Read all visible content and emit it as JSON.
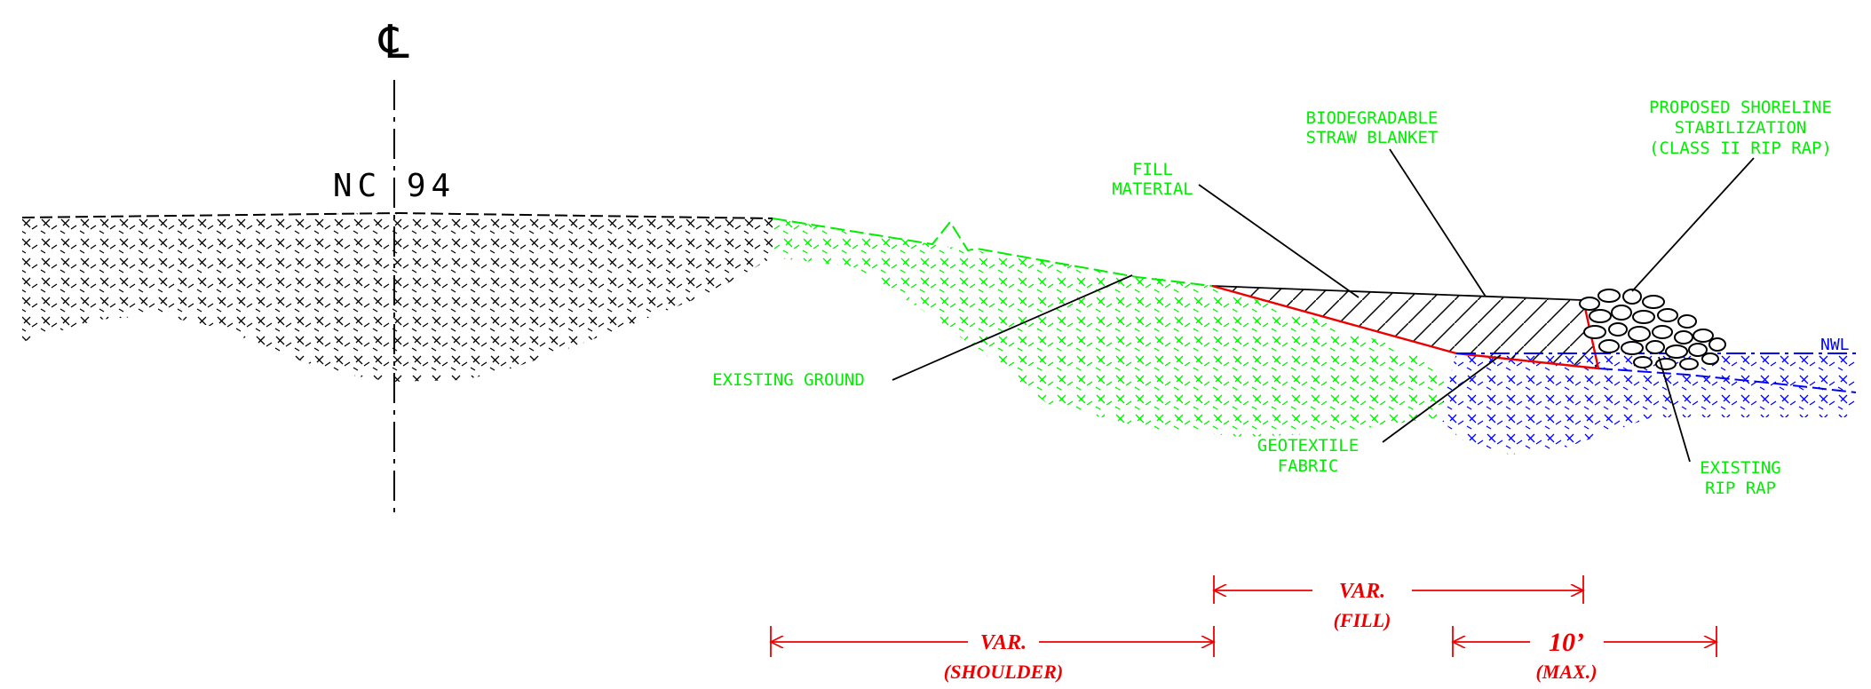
{
  "labels": {
    "centerline": "℄",
    "road": "NC 94",
    "biodegradable_blanket": [
      "BIODEGRADABLE",
      "STRAW BLANKET"
    ],
    "shoreline": [
      "PROPOSED SHORELINE",
      "STABILIZATION",
      "(CLASS II RIP RAP)"
    ],
    "fill_material": [
      "FILL",
      "MATERIAL"
    ],
    "existing_ground": "EXISTING GROUND",
    "geotextile": [
      "GEOTEXTILE",
      "FABRIC"
    ],
    "existing_rip_rap": [
      "EXISTING",
      "RIP RAP"
    ],
    "nwl": "NWL"
  },
  "dimensions": {
    "fill": [
      "VAR.",
      "(FILL)"
    ],
    "shoulder": [
      "VAR.",
      "(SHOULDER)"
    ],
    "max": [
      "10’",
      "(MAX.)"
    ]
  },
  "colors": {
    "existing_ground": "#000000",
    "shoulder": "#00ee00",
    "water": "#0000ff",
    "geotextile": "#ee0000",
    "dimensions": "#ee0000",
    "labels": "#00ee00",
    "leaders": "#000000"
  }
}
